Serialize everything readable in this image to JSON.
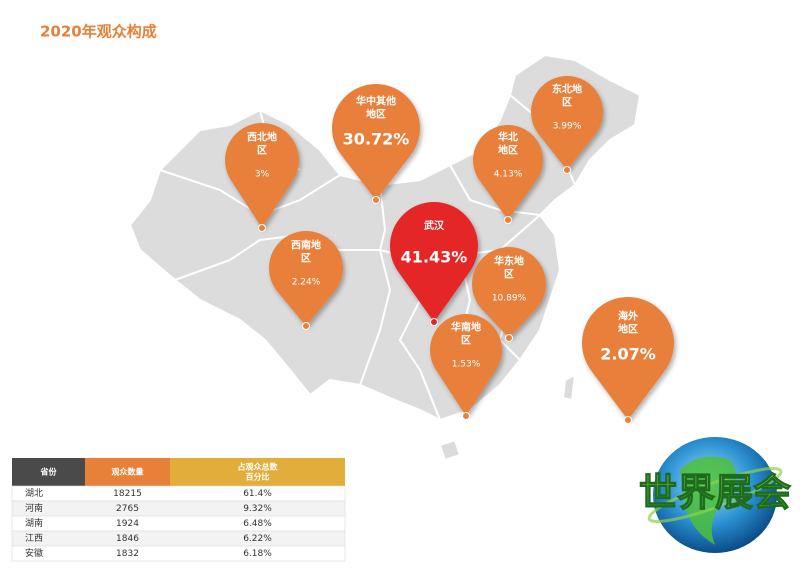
{
  "header": {
    "title": "2020年观众构成"
  },
  "pins": [
    {
      "label_lines": [
        "西北地",
        "区"
      ],
      "value": "3%"
    },
    {
      "label_lines": [
        "华中其他",
        "地区"
      ],
      "value": "30.72%"
    },
    {
      "label_lines": [
        "东北地",
        "区"
      ],
      "value": "3.99%"
    },
    {
      "label_lines": [
        "华北",
        "地区"
      ],
      "value": "4.13%"
    },
    {
      "label_lines": [
        "武汉"
      ],
      "value": "41.43%"
    },
    {
      "label_lines": [
        "西南地",
        "区"
      ],
      "value": "2.24%"
    },
    {
      "label_lines": [
        "华东地",
        "区"
      ],
      "value": "10.89%"
    },
    {
      "label_lines": [
        "华南地",
        "区"
      ],
      "value": "1.53%"
    },
    {
      "label_lines": [
        "海外",
        "地区"
      ],
      "value": "2.07%"
    }
  ],
  "table": {
    "headers": [
      [
        "省份"
      ],
      [
        "观众数量"
      ],
      [
        "占观众总数",
        "百分比"
      ]
    ],
    "rows": [
      [
        "湖北",
        "18215",
        "61.4%"
      ],
      [
        "河南",
        "2765",
        "9.32%"
      ],
      [
        "湖南",
        "1924",
        "6.48%"
      ],
      [
        "江西",
        "1846",
        "6.22%"
      ],
      [
        "安徽",
        "1832",
        "6.18%"
      ]
    ]
  },
  "logo": {
    "text": "世界展会"
  }
}
